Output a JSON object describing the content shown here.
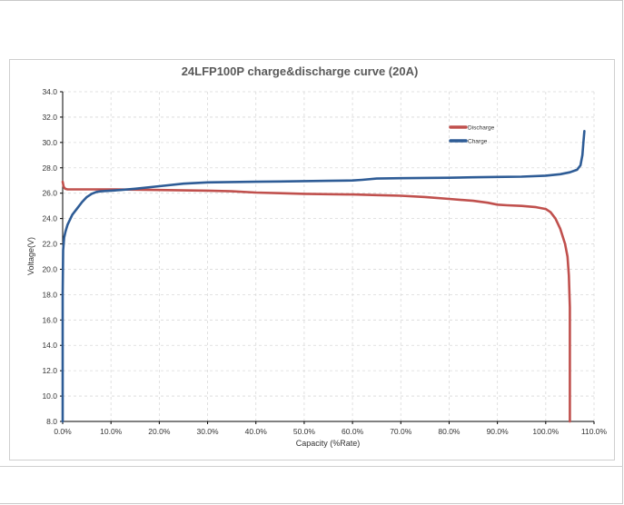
{
  "chart_data": {
    "type": "line",
    "title": "24LFP100P charge&discharge curve (20A)",
    "xlabel": "Capacity (%Rate)",
    "ylabel": "Voltage(V)",
    "xlim": [
      0,
      110
    ],
    "ylim": [
      8,
      34
    ],
    "xticks": [
      0,
      10,
      20,
      30,
      40,
      50,
      60,
      70,
      80,
      90,
      100,
      110
    ],
    "xtick_labels": [
      "0.0%",
      "10.0%",
      "20.0%",
      "30.0%",
      "40.0%",
      "50.0%",
      "60.0%",
      "70.0%",
      "80.0%",
      "90.0%",
      "100.0%",
      "110.0%"
    ],
    "yticks": [
      8,
      10,
      12,
      14,
      16,
      18,
      20,
      22,
      24,
      26,
      28,
      30,
      32,
      34
    ],
    "ytick_labels": [
      "8.0",
      "10.0",
      "12.0",
      "14.0",
      "16.0",
      "18.0",
      "20.0",
      "22.0",
      "24.0",
      "26.0",
      "28.0",
      "30.0",
      "32.0",
      "34.0"
    ],
    "grid": true,
    "legend_position": "top-right",
    "series": [
      {
        "name": "Discharge",
        "color": "#c0504d",
        "x": [
          0,
          0.2,
          0.5,
          1,
          3,
          5,
          10,
          15,
          20,
          25,
          30,
          35,
          40,
          45,
          50,
          55,
          60,
          65,
          70,
          75,
          80,
          85,
          88,
          90,
          92,
          95,
          98,
          100,
          101,
          102,
          103,
          104,
          104.5,
          104.8,
          105,
          105,
          105
        ],
        "y": [
          26.9,
          26.5,
          26.35,
          26.3,
          26.3,
          26.3,
          26.3,
          26.28,
          26.25,
          26.22,
          26.2,
          26.15,
          26.05,
          26.0,
          25.95,
          25.92,
          25.9,
          25.85,
          25.8,
          25.7,
          25.55,
          25.4,
          25.25,
          25.1,
          25.05,
          25.0,
          24.9,
          24.75,
          24.5,
          24.0,
          23.2,
          22.0,
          21.0,
          19.5,
          17.0,
          12.0,
          8.0
        ]
      },
      {
        "name": "Charge",
        "color": "#2e5c96",
        "x": [
          0,
          0,
          0.1,
          0.3,
          0.6,
          1,
          2,
          3,
          4,
          5,
          6,
          7,
          8,
          10,
          12,
          15,
          20,
          25,
          30,
          35,
          40,
          45,
          50,
          55,
          60,
          62,
          65,
          70,
          75,
          80,
          85,
          90,
          95,
          100,
          103,
          105,
          106.5,
          107.2,
          107.6,
          107.8,
          108
        ],
        "y": [
          8.0,
          18.0,
          21.5,
          22.5,
          23.0,
          23.5,
          24.3,
          24.8,
          25.3,
          25.7,
          25.95,
          26.1,
          26.15,
          26.2,
          26.25,
          26.35,
          26.55,
          26.75,
          26.85,
          26.88,
          26.9,
          26.92,
          26.95,
          26.97,
          27.0,
          27.05,
          27.15,
          27.18,
          27.2,
          27.22,
          27.25,
          27.28,
          27.3,
          27.38,
          27.5,
          27.65,
          27.85,
          28.2,
          29.0,
          30.0,
          30.9
        ]
      }
    ]
  }
}
